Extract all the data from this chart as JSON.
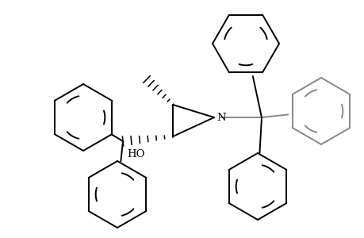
{
  "background_color": "#ffffff",
  "line_color": "#000000",
  "gray_color": "#888888",
  "line_width": 1.4,
  "figsize": [
    4.6,
    3.0
  ],
  "dpi": 100,
  "N_label": "N",
  "HO_label": "HO"
}
